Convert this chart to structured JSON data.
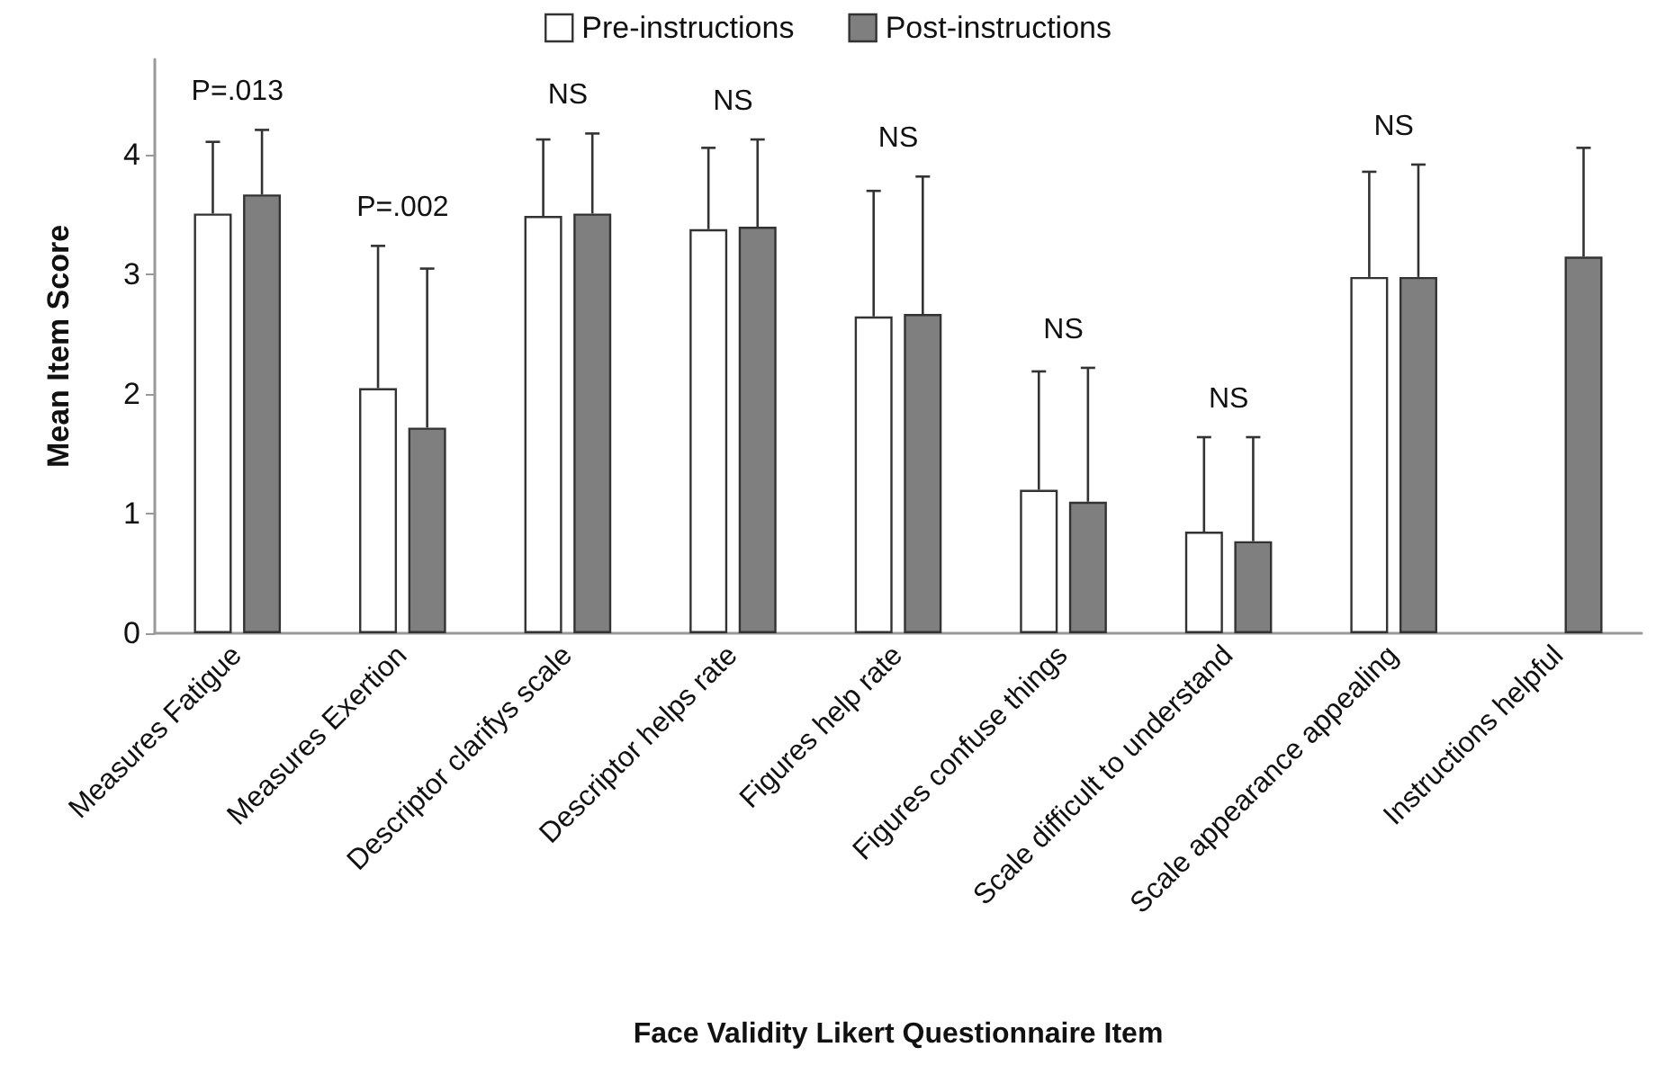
{
  "chart_data": {
    "type": "bar",
    "xlabel": "Face Validity Likert Questionnaire Item",
    "ylabel": "Mean Item Score",
    "categories": [
      "Measures Fatigue",
      "Measures Exertion",
      "Descriptor clarifys scale",
      "Descriptor helps rate",
      "Figures help rate",
      "Figures confuse things",
      "Scale difficult to understand",
      "Scale appearance appealing",
      "Instructions helpful"
    ],
    "series": [
      {
        "name": "Pre-instructions",
        "color": "#ffffff",
        "values": [
          3.51,
          2.05,
          3.49,
          3.38,
          2.65,
          1.2,
          0.85,
          2.98,
          null
        ],
        "errors": [
          [
            3.51,
            4.11
          ],
          [
            2.05,
            3.24
          ],
          [
            3.49,
            4.13
          ],
          [
            3.38,
            4.06
          ],
          [
            2.65,
            3.7
          ],
          [
            1.2,
            2.19
          ],
          [
            0.85,
            1.64
          ],
          [
            2.98,
            3.86
          ],
          null
        ]
      },
      {
        "name": "Post-instructions",
        "color": "#7f7f7f",
        "values": [
          3.67,
          1.72,
          3.51,
          3.4,
          2.67,
          1.1,
          0.77,
          2.98,
          3.15
        ],
        "errors": [
          [
            3.67,
            4.21
          ],
          [
            1.72,
            3.05
          ],
          [
            3.51,
            4.18
          ],
          [
            3.4,
            4.13
          ],
          [
            2.67,
            3.82
          ],
          [
            1.1,
            2.22
          ],
          [
            0.77,
            1.64
          ],
          [
            2.98,
            3.92
          ],
          [
            3.15,
            4.06
          ]
        ]
      }
    ],
    "ylim": [
      0,
      4.8
    ],
    "yticks": [
      0,
      1,
      2,
      3,
      4
    ],
    "grid": false,
    "legend": "top",
    "annotations": [
      "P=.013",
      "P=.002",
      "NS",
      "NS",
      "NS",
      "NS",
      "NS",
      "NS"
    ]
  }
}
